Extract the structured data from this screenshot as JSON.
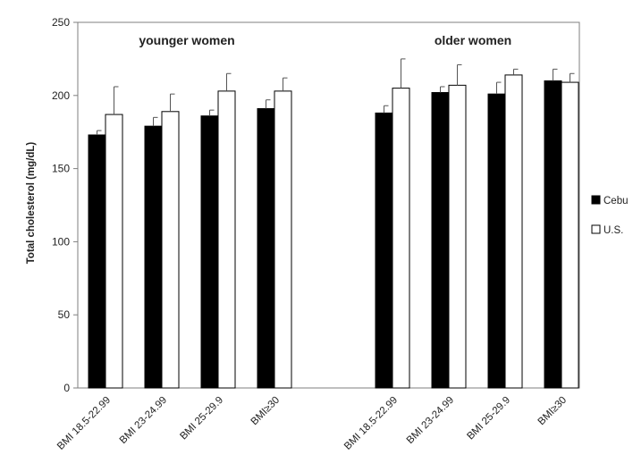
{
  "chart_data": {
    "type": "bar",
    "ylabel": "Total cholesterol (mg/dL)",
    "ylim": [
      0,
      250
    ],
    "yticks": [
      0,
      50,
      100,
      150,
      200,
      250
    ],
    "groups": [
      {
        "title": "younger women",
        "categories": [
          "BMI 18.5-22.99",
          "BMI 23-24.99",
          "BMI 25-29.9",
          "BMI≥30"
        ],
        "series": [
          {
            "name": "Cebu",
            "values": [
              173,
              179,
              186,
              191
            ],
            "error": [
              3,
              6,
              4,
              6
            ]
          },
          {
            "name": "U.S.",
            "values": [
              187,
              189,
              203,
              203
            ],
            "error": [
              19,
              12,
              12,
              9
            ]
          }
        ]
      },
      {
        "title": "older women",
        "categories": [
          "BMI 18.5-22.99",
          "BMI 23-24.99",
          "BMI 25-29.9",
          "BMI≥30"
        ],
        "series": [
          {
            "name": "Cebu",
            "values": [
              188,
              202,
              201,
              210
            ],
            "error": [
              5,
              4,
              8,
              8
            ]
          },
          {
            "name": "U.S.",
            "values": [
              205,
              207,
              214,
              209
            ],
            "error": [
              20,
              14,
              4,
              6
            ]
          }
        ]
      }
    ],
    "legend": {
      "placement": "right",
      "items": [
        {
          "name": "Cebu",
          "color": "#000000"
        },
        {
          "name": "U.S.",
          "color": "#ffffff"
        }
      ]
    },
    "grid": false
  }
}
